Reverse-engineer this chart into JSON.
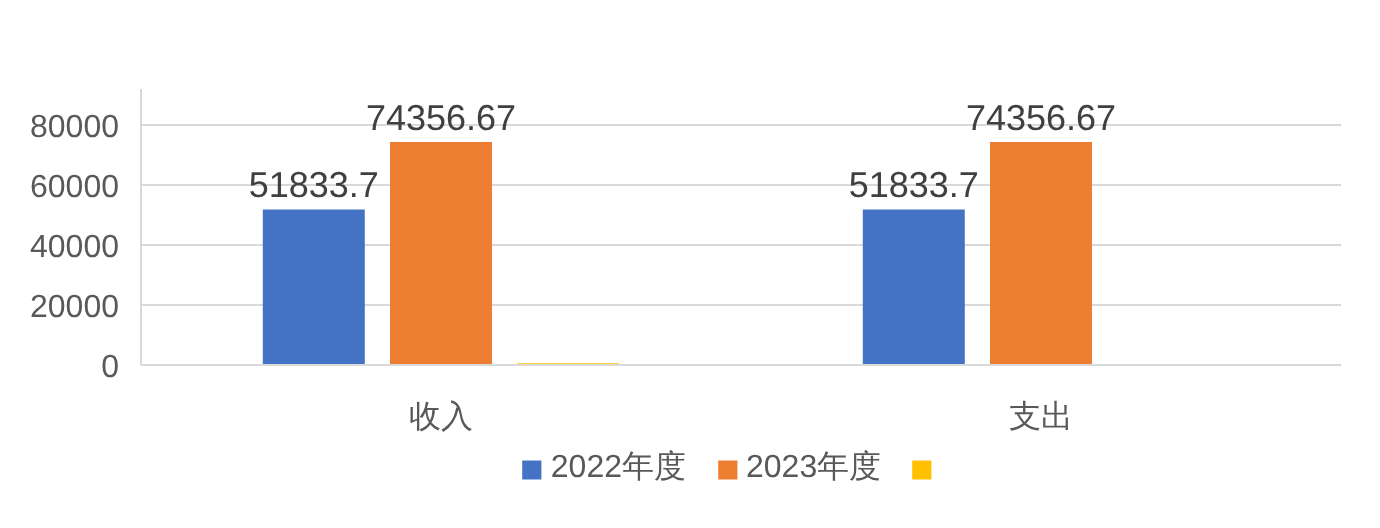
{
  "chart_data": {
    "type": "bar",
    "categories": [
      "收入",
      "支出"
    ],
    "series": [
      {
        "name": "2022年度",
        "color": "#4472c4",
        "values": [
          51833.7,
          51833.7
        ],
        "value_labels": [
          "51833.7",
          "51833.7"
        ]
      },
      {
        "name": "2023年度",
        "color": "#ed7d31",
        "values": [
          74356.67,
          74356.67
        ],
        "value_labels": [
          "74356.67",
          "74356.67"
        ]
      },
      {
        "color": "#ffc000",
        "values": [
          600,
          null
        ]
      }
    ],
    "ylim": [
      0,
      92000
    ],
    "yticks": [
      0,
      20000,
      40000,
      60000,
      80000
    ],
    "grid": "y",
    "legend": "bottom"
  }
}
